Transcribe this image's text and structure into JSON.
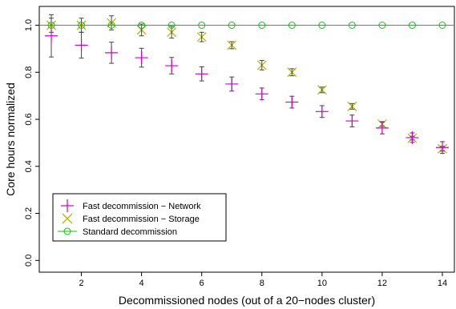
{
  "chart_data": {
    "type": "scatter",
    "title": "",
    "xlabel": "Decommissioned nodes (out of a 20−nodes cluster)",
    "ylabel": "Core hours normalized",
    "xlim": [
      0.6,
      14.4
    ],
    "ylim": [
      -0.05,
      1.08
    ],
    "x_ticks": [
      2,
      4,
      6,
      8,
      10,
      12,
      14
    ],
    "y_ticks": [
      0.0,
      0.2,
      0.4,
      0.6,
      0.8,
      1.0
    ],
    "y_tick_labels": [
      "0.0",
      "0.2",
      "0.4",
      "0.6",
      "0.8",
      "1.0"
    ],
    "legend_position": "bottom-left",
    "series": [
      {
        "name": "Fast decommission − Network",
        "marker": "plus",
        "color": "#cc00cc",
        "error_color": "#444444",
        "x": [
          1,
          2,
          3,
          4,
          5,
          6,
          7,
          8,
          9,
          10,
          11,
          12,
          13,
          14
        ],
        "y": [
          0.955,
          0.915,
          0.883,
          0.862,
          0.828,
          0.793,
          0.75,
          0.708,
          0.673,
          0.633,
          0.593,
          0.563,
          0.522,
          0.48
        ],
        "err": [
          0.09,
          0.055,
          0.045,
          0.04,
          0.035,
          0.03,
          0.03,
          0.025,
          0.025,
          0.025,
          0.025,
          0.025,
          0.02,
          0.025
        ]
      },
      {
        "name": "Fast decommission − Storage",
        "marker": "x",
        "color": "#b8b800",
        "error_color": "#444444",
        "x": [
          1,
          2,
          3,
          4,
          5,
          6,
          7,
          8,
          9,
          10,
          11,
          12,
          13,
          14
        ],
        "y": [
          1.0,
          1.0,
          1.01,
          0.98,
          0.97,
          0.95,
          0.915,
          0.83,
          0.8,
          0.725,
          0.655,
          0.58,
          0.52,
          0.475
        ],
        "err": [
          0.03,
          0.03,
          0.03,
          0.025,
          0.025,
          0.02,
          0.015,
          0.02,
          0.015,
          0.012,
          0.012,
          0.01,
          0.008,
          0.01
        ]
      },
      {
        "name": "Standard decommission",
        "marker": "circle-line",
        "color": "#00cc00",
        "x": [
          1,
          2,
          3,
          4,
          5,
          6,
          7,
          8,
          9,
          10,
          11,
          12,
          13,
          14
        ],
        "y": [
          1.0,
          1.0,
          1.0,
          1.0,
          1.0,
          1.0,
          1.0,
          1.0,
          1.0,
          1.0,
          1.0,
          1.0,
          1.0,
          1.0
        ]
      }
    ]
  }
}
